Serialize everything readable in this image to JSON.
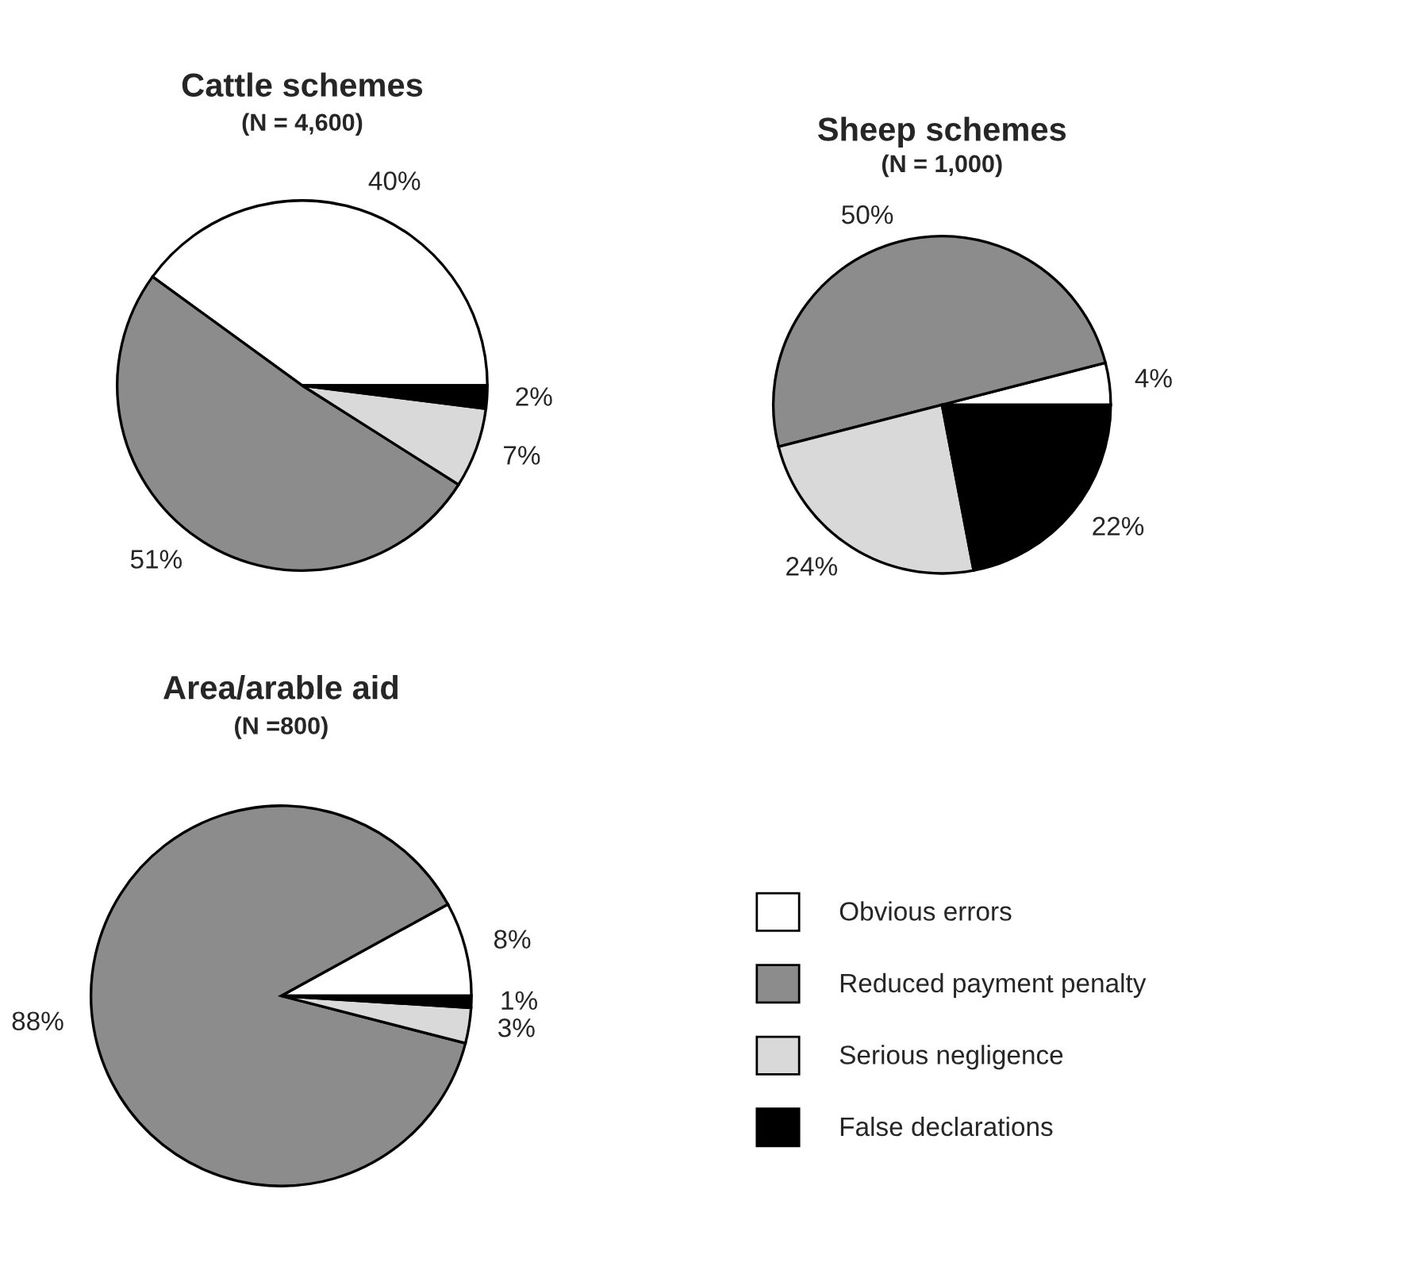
{
  "chart_data": [
    {
      "type": "pie",
      "title": "Cattle schemes",
      "subtitle": "(N = 4,600)",
      "categories": [
        null,
        null,
        null,
        null
      ],
      "values": [
        40,
        51,
        7,
        2
      ],
      "value_labels": [
        "40%",
        "51%",
        "7%",
        "2%"
      ],
      "colors": [
        "#ffffff",
        "#8c8c8c",
        "#d9d9d9",
        "#000000"
      ]
    },
    {
      "type": "pie",
      "title": "Sheep schemes",
      "subtitle": "(N = 1,000)",
      "categories": [
        null,
        null,
        null,
        null
      ],
      "values": [
        4,
        50,
        24,
        22
      ],
      "value_labels": [
        "4%",
        "50%",
        "24%",
        "22%"
      ],
      "colors": [
        "#ffffff",
        "#8c8c8c",
        "#d9d9d9",
        "#000000"
      ]
    },
    {
      "type": "pie",
      "title": "Area/arable aid",
      "subtitle": "(N =800)",
      "categories": [
        "Obvious errors",
        "Reduced payment penalty",
        "Serious negligence",
        "False declarations"
      ],
      "values": [
        8,
        88,
        3,
        1
      ],
      "value_labels": [
        "8%",
        "88%",
        "3%",
        "1%"
      ],
      "colors": [
        "#ffffff",
        "#8c8c8c",
        "#d9d9d9",
        "#000000"
      ],
      "legend": "right"
    }
  ]
}
